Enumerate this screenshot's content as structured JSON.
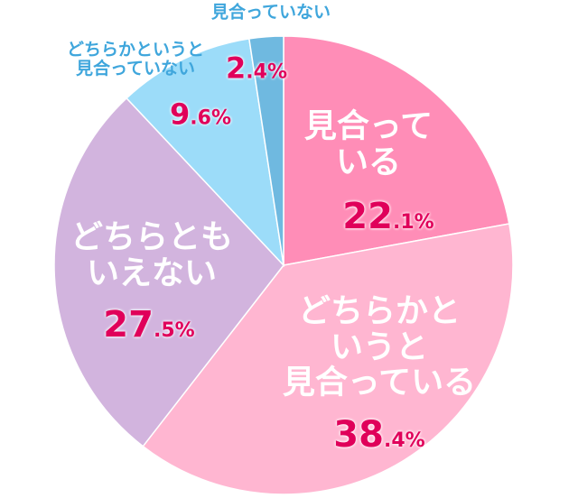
{
  "chart_data": {
    "type": "pie",
    "categories": [
      "見合って\nいる",
      "どちらかと\nいうと\n見合っている",
      "どちらとも\nいえない",
      "どちらかというと\n見合っていない",
      "見合っていない"
    ],
    "values": [
      22.1,
      38.4,
      27.5,
      9.6,
      2.4
    ],
    "value_labels": [
      "22.1%",
      "38.4%",
      "27.5%",
      "9.6%",
      "2.4%"
    ],
    "colors": [
      "#ff8db7",
      "#ffb6d1",
      "#d2b4de",
      "#9cdcf9",
      "#6fb9e0"
    ]
  }
}
